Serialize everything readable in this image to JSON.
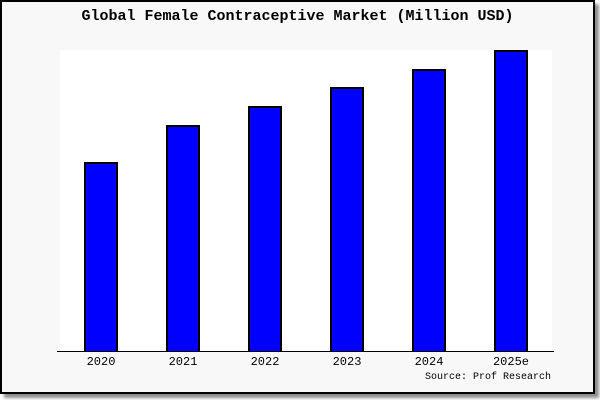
{
  "chart_data": {
    "type": "bar",
    "title": "Global Female Contraceptive Market (Million USD)",
    "categories": [
      "2020",
      "2021",
      "2022",
      "2023",
      "2024",
      "2025e"
    ],
    "values": [
      62.8,
      75.1,
      81.4,
      87.7,
      93.7,
      100
    ],
    "values_note": "no y-axis or data labels shown; values are relative bar heights as percent of the tallest (2025e) bar",
    "xlabel": "",
    "ylabel": "",
    "ylim": [
      0,
      100
    ],
    "grid": false,
    "legend": null,
    "bar_color": "#0000ff",
    "bar_border_color": "#000000"
  },
  "source": {
    "label": "Source: Prof Research"
  },
  "colors": {
    "card_background": "#f8f8f8",
    "plot_background": "#ffffff",
    "frame_border": "#000000",
    "bar_fill": "#0000ff",
    "text": "#000000"
  }
}
